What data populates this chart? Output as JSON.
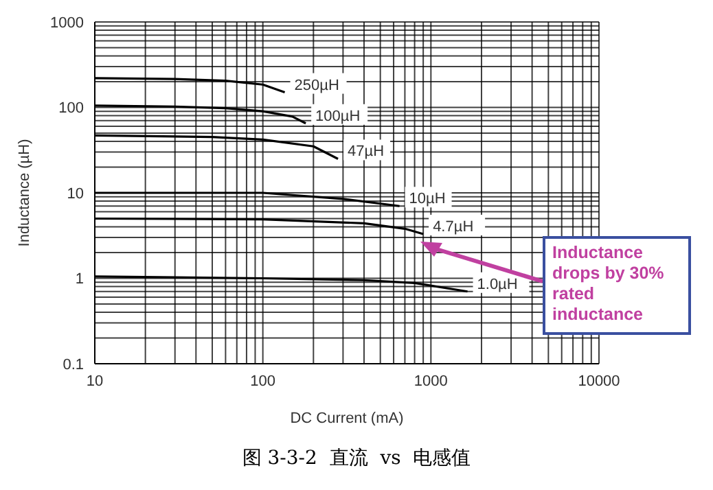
{
  "chart_data": {
    "type": "line",
    "xlabel": "DC Current (mA)",
    "ylabel": "Inductance (µH)",
    "log": "xy",
    "grid": true,
    "marker": "none",
    "line_style": "solid",
    "xlim": [
      10,
      10000
    ],
    "ylim": [
      0.1,
      1000
    ],
    "xticks": [
      10,
      {
        "value": 20,
        "label": null
      },
      {
        "value": 30,
        "label": null
      },
      {
        "value": 40,
        "label": null
      },
      {
        "value": 50,
        "label": null
      },
      {
        "value": 60,
        "label": null
      },
      {
        "value": 70,
        "label": null
      },
      {
        "value": 80,
        "label": null
      },
      {
        "value": 90,
        "label": null
      },
      100,
      {
        "value": 200,
        "label": null
      },
      {
        "value": 300,
        "label": null
      },
      {
        "value": 400,
        "label": null
      },
      {
        "value": 500,
        "label": null
      },
      {
        "value": 600,
        "label": null
      },
      {
        "value": 700,
        "label": null
      },
      {
        "value": 800,
        "label": null
      },
      {
        "value": 900,
        "label": null
      },
      1000,
      {
        "value": 2000,
        "label": null
      },
      {
        "value": 3000,
        "label": null
      },
      {
        "value": 4000,
        "label": null
      },
      {
        "value": 5000,
        "label": null
      },
      {
        "value": 6000,
        "label": null
      },
      {
        "value": 7000,
        "label": null
      },
      {
        "value": 8000,
        "label": null
      },
      {
        "value": 9000,
        "label": null
      },
      10000
    ],
    "yticks": [
      0.1,
      {
        "value": 0.2,
        "label": null
      },
      {
        "value": 0.3,
        "label": null
      },
      {
        "value": 0.4,
        "label": null
      },
      {
        "value": 0.5,
        "label": null
      },
      {
        "value": 0.6,
        "label": null
      },
      {
        "value": 0.7,
        "label": null
      },
      {
        "value": 0.8,
        "label": null
      },
      {
        "value": 0.9,
        "label": null
      },
      1,
      {
        "value": 2,
        "label": null
      },
      {
        "value": 3,
        "label": null
      },
      {
        "value": 4,
        "label": null
      },
      {
        "value": 5,
        "label": null
      },
      {
        "value": 6,
        "label": null
      },
      {
        "value": 7,
        "label": null
      },
      {
        "value": 8,
        "label": null
      },
      {
        "value": 9,
        "label": null
      },
      10,
      {
        "value": 20,
        "label": null
      },
      {
        "value": 30,
        "label": null
      },
      {
        "value": 40,
        "label": null
      },
      {
        "value": 50,
        "label": null
      },
      {
        "value": 60,
        "label": null
      },
      {
        "value": 70,
        "label": null
      },
      {
        "value": 80,
        "label": null
      },
      {
        "value": 90,
        "label": null
      },
      100,
      {
        "value": 200,
        "label": null
      },
      {
        "value": 300,
        "label": null
      },
      {
        "value": 400,
        "label": null
      },
      {
        "value": 500,
        "label": null
      },
      {
        "value": 600,
        "label": null
      },
      {
        "value": 700,
        "label": null
      },
      {
        "value": 800,
        "label": null
      },
      {
        "value": 900,
        "label": null
      },
      1000
    ],
    "series": [
      {
        "name": "250µH",
        "color": "#000000",
        "x": [
          10,
          30,
          60,
          100,
          135
        ],
        "values": [
          220,
          215,
          205,
          185,
          150
        ]
      },
      {
        "name": "100µH",
        "color": "#000000",
        "x": [
          10,
          30,
          60,
          100,
          150,
          180
        ],
        "values": [
          105,
          102,
          98,
          90,
          78,
          65
        ]
      },
      {
        "name": "47µH",
        "color": "#000000",
        "x": [
          10,
          50,
          100,
          200,
          280
        ],
        "values": [
          47,
          45,
          42,
          35,
          25
        ]
      },
      {
        "name": "10µH",
        "color": "#000000",
        "x": [
          10,
          50,
          100,
          300,
          650
        ],
        "values": [
          10,
          10,
          10,
          8.5,
          7
        ]
      },
      {
        "name": "4.7µH",
        "color": "#000000",
        "x": [
          10,
          100,
          400,
          700,
          900
        ],
        "values": [
          5,
          4.9,
          4.4,
          3.8,
          3.3
        ]
      },
      {
        "name": "1.0µH",
        "color": "#000000",
        "x": [
          10,
          100,
          400,
          800,
          1650
        ],
        "values": [
          1.05,
          1,
          0.95,
          0.88,
          0.7
        ]
      }
    ],
    "annotations": [
      "Inductance drops by 30% rated inductance",
      "图 3-3-2  直流  vs  电感值"
    ]
  }
}
